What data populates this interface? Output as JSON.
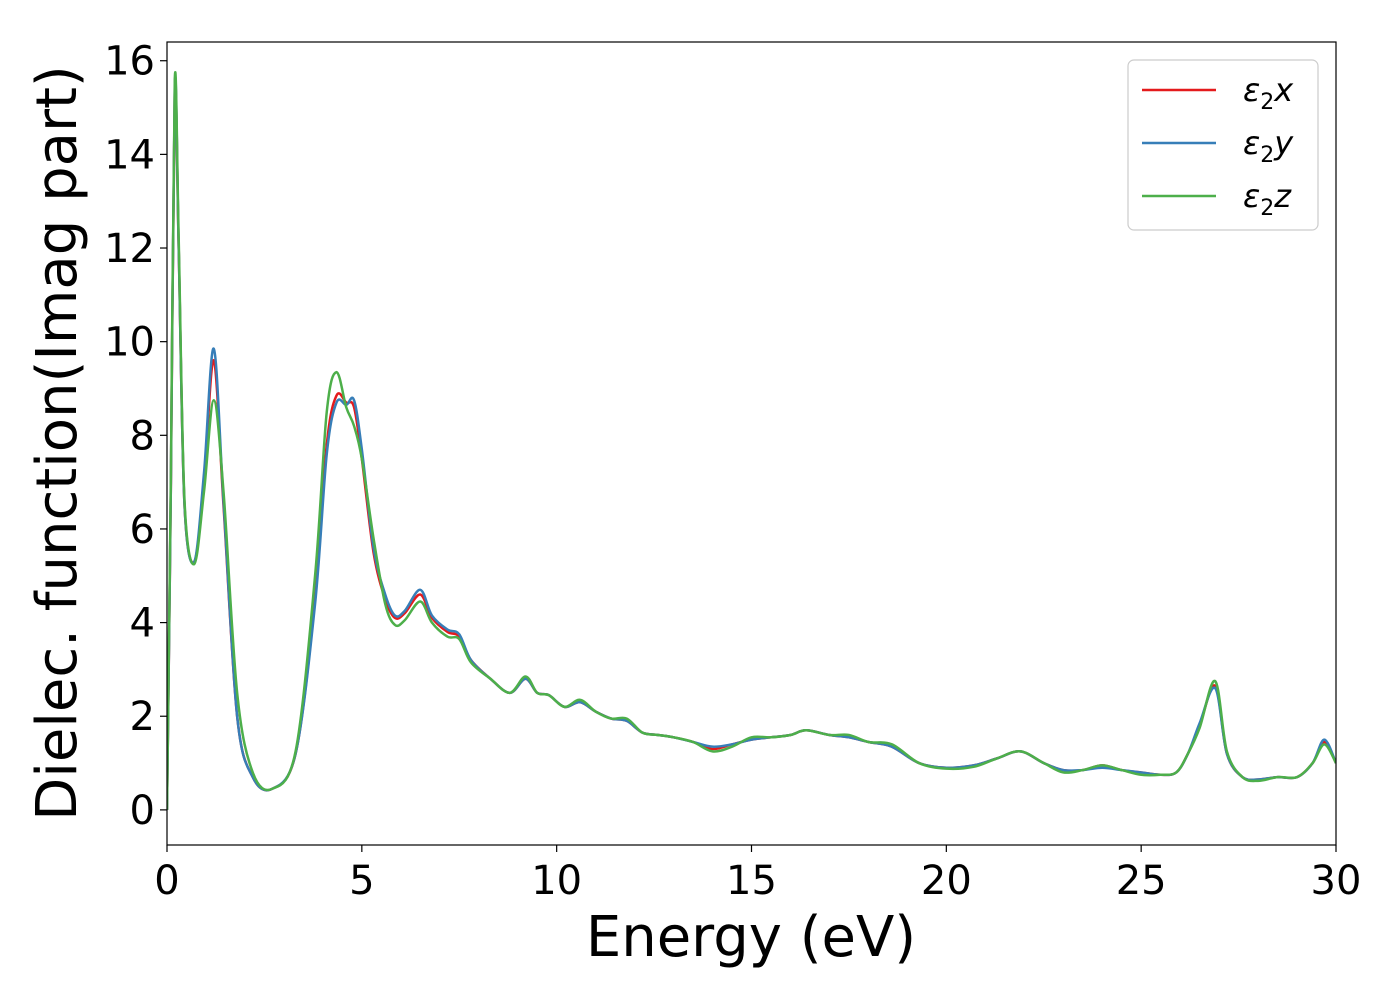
{
  "chart_data": {
    "type": "line",
    "title": "",
    "xlabel": "Energy (eV)",
    "ylabel": "Dielec. function(Imag part)",
    "xlim": [
      0,
      30
    ],
    "ylim": [
      -0.75,
      16.4
    ],
    "xticks": [
      0,
      5,
      10,
      15,
      20,
      25,
      30
    ],
    "yticks": [
      0,
      2,
      4,
      6,
      8,
      10,
      12,
      14,
      16
    ],
    "grid": false,
    "legend_position": "top-right",
    "series": [
      {
        "name": "ε2x",
        "legend_main": "ε",
        "legend_sub": "2",
        "legend_suffix": "x",
        "color": "#e41a1c",
        "x": [
          0,
          0.1,
          0.2,
          0.3,
          0.45,
          0.7,
          0.95,
          1.2,
          1.45,
          1.8,
          2.2,
          2.7,
          3.3,
          3.8,
          4.1,
          4.35,
          4.6,
          4.8,
          5.0,
          5.3,
          5.6,
          5.85,
          6.1,
          6.5,
          6.8,
          7.2,
          7.5,
          7.8,
          8.3,
          8.8,
          9.2,
          9.5,
          9.8,
          10.2,
          10.6,
          11.0,
          11.4,
          11.8,
          12.2,
          12.6,
          13.0,
          13.5,
          14.0,
          14.5,
          15.0,
          15.5,
          16.0,
          16.4,
          17.0,
          17.5,
          18.0,
          18.6,
          19.3,
          20.0,
          20.7,
          21.3,
          21.9,
          22.5,
          23.0,
          23.5,
          24.0,
          24.5,
          25.0,
          25.5,
          25.9,
          26.2,
          26.5,
          26.9,
          27.2,
          27.6,
          28.0,
          28.5,
          29.0,
          29.4,
          29.7,
          30.0
        ],
        "values": [
          0.0,
          7.0,
          15.4,
          12.0,
          6.5,
          5.3,
          7.0,
          9.6,
          6.5,
          2.0,
          0.7,
          0.45,
          1.2,
          4.5,
          7.8,
          8.85,
          8.7,
          8.6,
          7.5,
          5.5,
          4.5,
          4.1,
          4.2,
          4.6,
          4.1,
          3.8,
          3.7,
          3.2,
          2.8,
          2.5,
          2.8,
          2.5,
          2.45,
          2.2,
          2.3,
          2.1,
          1.95,
          1.9,
          1.65,
          1.6,
          1.55,
          1.45,
          1.3,
          1.4,
          1.5,
          1.55,
          1.6,
          1.7,
          1.6,
          1.55,
          1.45,
          1.35,
          1.0,
          0.9,
          0.95,
          1.1,
          1.25,
          1.0,
          0.85,
          0.85,
          0.95,
          0.85,
          0.8,
          0.75,
          0.8,
          1.2,
          1.8,
          2.65,
          1.2,
          0.7,
          0.65,
          0.7,
          0.7,
          1.0,
          1.45,
          1.0
        ]
      },
      {
        "name": "ε2y",
        "legend_main": "ε",
        "legend_sub": "2",
        "legend_suffix": "y",
        "color": "#377eb8",
        "x": [
          0,
          0.1,
          0.2,
          0.3,
          0.45,
          0.7,
          0.95,
          1.2,
          1.45,
          1.8,
          2.2,
          2.7,
          3.3,
          3.8,
          4.1,
          4.35,
          4.6,
          4.8,
          5.0,
          5.3,
          5.6,
          5.85,
          6.1,
          6.5,
          6.8,
          7.2,
          7.5,
          7.8,
          8.3,
          8.8,
          9.2,
          9.5,
          9.8,
          10.2,
          10.6,
          11.0,
          11.4,
          11.8,
          12.2,
          12.6,
          13.0,
          13.5,
          14.0,
          14.5,
          15.0,
          15.5,
          16.0,
          16.4,
          17.0,
          17.5,
          18.0,
          18.6,
          19.3,
          20.0,
          20.7,
          21.3,
          21.9,
          22.5,
          23.0,
          23.5,
          24.0,
          24.5,
          25.0,
          25.5,
          25.9,
          26.2,
          26.5,
          26.9,
          27.2,
          27.6,
          28.0,
          28.5,
          29.0,
          29.4,
          29.7,
          30.0
        ],
        "values": [
          0.0,
          7.0,
          15.5,
          12.0,
          6.5,
          5.3,
          7.2,
          9.85,
          6.6,
          2.0,
          0.7,
          0.45,
          1.2,
          4.4,
          7.6,
          8.7,
          8.65,
          8.75,
          7.7,
          5.6,
          4.6,
          4.15,
          4.25,
          4.7,
          4.15,
          3.85,
          3.75,
          3.2,
          2.8,
          2.5,
          2.8,
          2.5,
          2.45,
          2.2,
          2.3,
          2.1,
          1.95,
          1.9,
          1.65,
          1.6,
          1.55,
          1.45,
          1.35,
          1.4,
          1.5,
          1.55,
          1.6,
          1.7,
          1.6,
          1.55,
          1.45,
          1.35,
          1.0,
          0.9,
          0.95,
          1.1,
          1.25,
          1.0,
          0.85,
          0.85,
          0.9,
          0.85,
          0.8,
          0.75,
          0.8,
          1.2,
          1.85,
          2.6,
          1.2,
          0.7,
          0.65,
          0.7,
          0.7,
          1.0,
          1.5,
          1.0
        ]
      },
      {
        "name": "ε2z",
        "legend_main": "ε",
        "legend_sub": "2",
        "legend_suffix": "z",
        "color": "#4daf4a",
        "x": [
          0,
          0.1,
          0.2,
          0.3,
          0.45,
          0.7,
          0.95,
          1.2,
          1.45,
          1.8,
          2.2,
          2.7,
          3.3,
          3.8,
          4.1,
          4.35,
          4.6,
          4.8,
          5.0,
          5.3,
          5.6,
          5.85,
          6.1,
          6.5,
          6.8,
          7.2,
          7.5,
          7.8,
          8.3,
          8.8,
          9.2,
          9.5,
          9.8,
          10.2,
          10.6,
          11.0,
          11.4,
          11.8,
          12.2,
          12.6,
          13.0,
          13.5,
          14.0,
          14.5,
          15.0,
          15.5,
          16.0,
          16.4,
          17.0,
          17.5,
          18.0,
          18.6,
          19.3,
          20.0,
          20.7,
          21.3,
          21.9,
          22.5,
          23.0,
          23.5,
          24.0,
          24.5,
          25.0,
          25.5,
          25.9,
          26.2,
          26.5,
          26.9,
          27.2,
          27.6,
          28.0,
          28.5,
          29.0,
          29.4,
          29.7,
          30.0
        ],
        "values": [
          0.0,
          7.2,
          15.6,
          12.2,
          6.6,
          5.25,
          6.8,
          8.75,
          6.8,
          2.5,
          0.8,
          0.45,
          1.25,
          5.0,
          8.5,
          9.35,
          8.6,
          8.2,
          7.5,
          5.8,
          4.4,
          3.95,
          4.05,
          4.45,
          4.0,
          3.7,
          3.65,
          3.15,
          2.8,
          2.5,
          2.85,
          2.5,
          2.45,
          2.2,
          2.35,
          2.1,
          1.95,
          1.95,
          1.65,
          1.6,
          1.55,
          1.45,
          1.25,
          1.35,
          1.55,
          1.55,
          1.6,
          1.7,
          1.6,
          1.6,
          1.45,
          1.4,
          1.0,
          0.88,
          0.92,
          1.1,
          1.25,
          1.0,
          0.8,
          0.85,
          0.95,
          0.85,
          0.75,
          0.75,
          0.8,
          1.2,
          1.75,
          2.75,
          1.25,
          0.7,
          0.62,
          0.7,
          0.7,
          1.0,
          1.4,
          1.0
        ]
      }
    ]
  }
}
